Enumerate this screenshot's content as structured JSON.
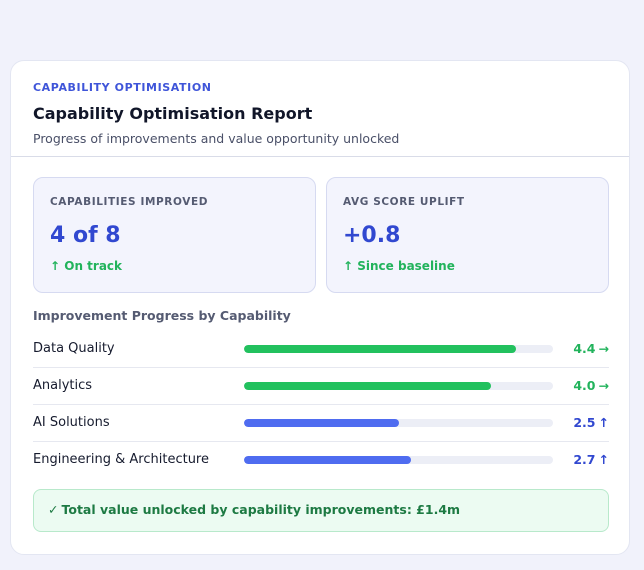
{
  "report": {
    "eyebrow": "CAPABILITY OPTIMISATION",
    "title": "Capability Optimisation Report",
    "subtitle": "Progress of improvements and value opportunity unlocked"
  },
  "metrics": [
    {
      "label": "CAPABILITIES IMPROVED",
      "value": "4 of 8",
      "delta_icon": "↑",
      "delta": "On track"
    },
    {
      "label": "AVG SCORE UPLIFT",
      "value": "+0.8",
      "delta_icon": "↑",
      "delta": "Since baseline"
    }
  ],
  "progress": {
    "title": "Improvement Progress by Capability",
    "scale_max": 5,
    "rows": [
      {
        "label": "Data Quality",
        "score": "4.4",
        "score_value": 4.4,
        "trend_icon": "→",
        "color": "#22c15e",
        "score_color": "#22b35c"
      },
      {
        "label": "Analytics",
        "score": "4.0",
        "score_value": 4.0,
        "trend_icon": "→",
        "color": "#22c15e",
        "score_color": "#22b35c"
      },
      {
        "label": "AI Solutions",
        "score": "2.5",
        "score_value": 2.5,
        "trend_icon": "↑",
        "color": "#4f6cf0",
        "score_color": "#3148d0"
      },
      {
        "label": "Engineering & Architecture",
        "score": "2.7",
        "score_value": 2.7,
        "trend_icon": "↑",
        "color": "#4f6cf0",
        "score_color": "#3148d0"
      }
    ]
  },
  "callout": {
    "icon": "✓",
    "text": "Total value unlocked by capability improvements: £1.4m"
  },
  "colors": {
    "accent": "#3148d0",
    "positive": "#22b35c",
    "background": "#f1f2fb"
  }
}
